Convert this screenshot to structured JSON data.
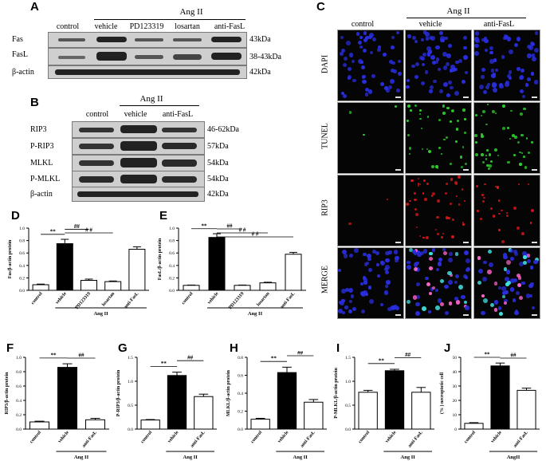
{
  "panels": {
    "A": {
      "letter": "A",
      "treatment": "Ang  II",
      "lanes": [
        "control",
        "vehicle",
        "PD123319",
        "losartan",
        "anti-FasL"
      ],
      "rows": [
        {
          "label": "Fas",
          "kda": "43kDa"
        },
        {
          "label": "FasL",
          "kda": "38-43kDa"
        },
        {
          "label": "β-actin",
          "kda": "42kDa"
        }
      ]
    },
    "B": {
      "letter": "B",
      "treatment": "Ang  II",
      "lanes": [
        "control",
        "vehicle",
        "anti-FasL"
      ],
      "rows": [
        {
          "label": "RIP3",
          "kda": "46-62kDa"
        },
        {
          "label": "P-RIP3",
          "kda": "57kDa"
        },
        {
          "label": "MLKL",
          "kda": "54kDa"
        },
        {
          "label": "P-MLKL",
          "kda": "54kDa"
        },
        {
          "label": "β-actin",
          "kda": "42kDa"
        }
      ]
    },
    "C": {
      "letter": "C",
      "treatment": "Ang  II",
      "columns": [
        "control",
        "vehicle",
        "anti-FasL"
      ],
      "rows": [
        "DAPI",
        "TUNEL",
        "RIP3",
        "MERGE"
      ],
      "colors": {
        "DAPI": "#2a2ee0",
        "TUNEL": "#2fd12f",
        "RIP3": "#e01818",
        "MERGE_pink": "#ff66cc",
        "MERGE_cyan": "#44e0e0"
      }
    }
  },
  "chart_data": [
    {
      "letter": "D",
      "type": "bar",
      "ylabel": "Fas/β-actin protein",
      "group_label": "Ang II",
      "categories": [
        "control",
        "vehicle",
        "PD123319",
        "losartan",
        "anti-FasL"
      ],
      "values": [
        0.09,
        0.75,
        0.16,
        0.14,
        0.66
      ],
      "errors": [
        0.01,
        0.07,
        0.02,
        0.01,
        0.04
      ],
      "fills": [
        "#ffffff",
        "#000000",
        "#ffffff",
        "#ffffff",
        "#ffffff"
      ],
      "ylim": [
        0,
        1.0
      ],
      "yticks": [
        "0.0",
        "0.2",
        "0.4",
        "0.6",
        "0.8",
        "1.0"
      ],
      "group_start": 1,
      "annotations": [
        {
          "text": "**",
          "from": 0,
          "to": 1
        },
        {
          "text": "##",
          "from": 1,
          "to": 2
        },
        {
          "text": "# #",
          "from": 1,
          "to": 3
        }
      ]
    },
    {
      "letter": "E",
      "type": "bar",
      "ylabel": "FasL/β-actin protein",
      "group_label": "Ang II",
      "categories": [
        "control",
        "vehicle",
        "PD123319",
        "losartan",
        "anti-FasL"
      ],
      "values": [
        0.08,
        0.85,
        0.08,
        0.12,
        0.58
      ],
      "errors": [
        0.005,
        0.06,
        0.005,
        0.01,
        0.03
      ],
      "fills": [
        "#ffffff",
        "#000000",
        "#ffffff",
        "#ffffff",
        "#ffffff"
      ],
      "ylim": [
        0,
        1.0
      ],
      "yticks": [
        "0.0",
        "0.2",
        "0.4",
        "0.6",
        "0.8",
        "1.0"
      ],
      "group_start": 1,
      "annotations": [
        {
          "text": "**",
          "from": 0,
          "to": 1
        },
        {
          "text": "##",
          "from": 1,
          "to": 2
        },
        {
          "text": "# #",
          "from": 1,
          "to": 3
        },
        {
          "text": "# #",
          "from": 1,
          "to": 4
        }
      ]
    },
    {
      "letter": "F",
      "type": "bar",
      "ylabel": "RIP3/β-actin protein",
      "group_label": "Ang II",
      "categories": [
        "control",
        "vehicle",
        "anti-FasL"
      ],
      "values": [
        0.1,
        0.86,
        0.13
      ],
      "errors": [
        0.01,
        0.05,
        0.02
      ],
      "fills": [
        "#ffffff",
        "#000000",
        "#ffffff"
      ],
      "ylim": [
        0,
        1.0
      ],
      "yticks": [
        "0.0",
        "0.2",
        "0.4",
        "0.6",
        "0.8",
        "1.0"
      ],
      "group_start": 1,
      "annotations": [
        {
          "text": "**",
          "from": 0,
          "to": 1
        },
        {
          "text": "##",
          "from": 1,
          "to": 2
        }
      ]
    },
    {
      "letter": "G",
      "type": "bar",
      "ylabel": "P-RIP3/β-actin protein",
      "group_label": "Ang II",
      "categories": [
        "control",
        "vehicle",
        "anti-FasL"
      ],
      "values": [
        0.19,
        1.12,
        0.68
      ],
      "errors": [
        0.01,
        0.07,
        0.05
      ],
      "fills": [
        "#ffffff",
        "#000000",
        "#ffffff"
      ],
      "ylim": [
        0,
        1.5
      ],
      "yticks": [
        "0.0",
        "0.5",
        "1.0",
        "1.5"
      ],
      "group_start": 1,
      "annotations": [
        {
          "text": "**",
          "from": 0,
          "to": 1
        },
        {
          "text": "##",
          "from": 1,
          "to": 2
        }
      ]
    },
    {
      "letter": "H",
      "type": "bar",
      "ylabel": "MLKL/β-actin protein",
      "group_label": "Ang II",
      "categories": [
        "control",
        "vehicle",
        "anti-FasL"
      ],
      "values": [
        0.11,
        0.63,
        0.3
      ],
      "errors": [
        0.01,
        0.06,
        0.03
      ],
      "fills": [
        "#ffffff",
        "#000000",
        "#ffffff"
      ],
      "ylim": [
        0,
        0.8
      ],
      "yticks": [
        "0.0",
        "0.2",
        "0.4",
        "0.6",
        "0.8"
      ],
      "group_start": 1,
      "annotations": [
        {
          "text": "**",
          "from": 0,
          "to": 1
        },
        {
          "text": "##",
          "from": 1,
          "to": 2
        }
      ]
    },
    {
      "letter": "I",
      "type": "bar",
      "ylabel": "P-MLKL/β-actin protein",
      "group_label": "Ang II",
      "categories": [
        "control",
        "vehicle",
        "anti-FasL"
      ],
      "values": [
        0.77,
        1.22,
        0.77
      ],
      "errors": [
        0.04,
        0.03,
        0.1
      ],
      "fills": [
        "#ffffff",
        "#000000",
        "#ffffff"
      ],
      "ylim": [
        0,
        1.5
      ],
      "yticks": [
        "0.0",
        "0.5",
        "1.0",
        "1.5"
      ],
      "group_start": 1,
      "annotations": [
        {
          "text": "**",
          "from": 0,
          "to": 1
        },
        {
          "text": "##",
          "from": 1,
          "to": 2
        }
      ]
    },
    {
      "letter": "J",
      "type": "bar",
      "ylabel": "(% )  necroptotic cell",
      "group_label": "AngII",
      "categories": [
        "control",
        "vehicle",
        "anti-FasL"
      ],
      "values": [
        4,
        44,
        27
      ],
      "errors": [
        0.5,
        2,
        1.5
      ],
      "fills": [
        "#ffffff",
        "#000000",
        "#ffffff"
      ],
      "ylim": [
        0,
        50
      ],
      "yticks": [
        "0",
        "10",
        "20",
        "30",
        "40",
        "50"
      ],
      "group_start": 1,
      "annotations": [
        {
          "text": "**",
          "from": 0,
          "to": 1
        },
        {
          "text": "##",
          "from": 1,
          "to": 2
        }
      ]
    }
  ]
}
